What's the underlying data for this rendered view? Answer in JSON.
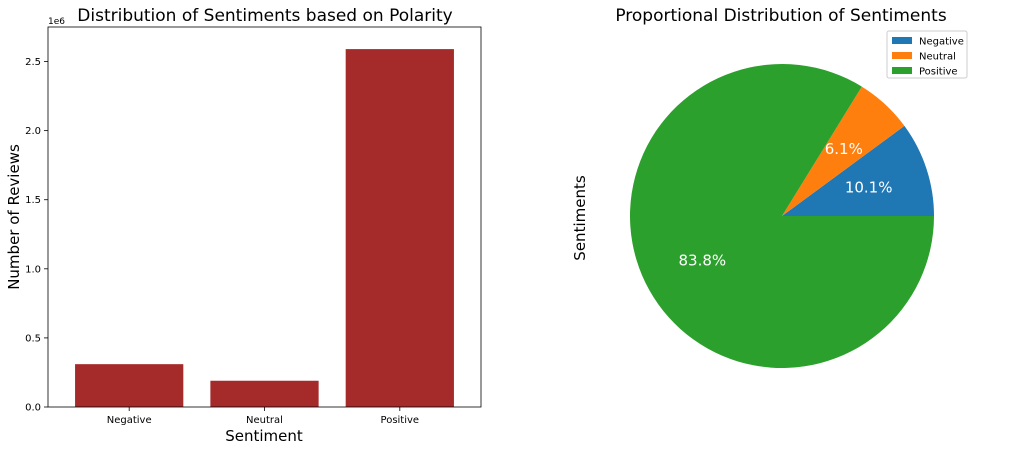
{
  "chart_data": [
    {
      "type": "bar",
      "title": "Distribution of Sentiments based on Polarity",
      "xlabel": "Sentiment",
      "ylabel": "Number of Reviews",
      "y_offset_label": "1e6",
      "categories": [
        "Negative",
        "Neutral",
        "Positive"
      ],
      "values": [
        310000,
        190000,
        2590000
      ],
      "ylim": [
        0,
        2750000
      ],
      "yticks": [
        0,
        500000,
        1000000,
        1500000,
        2000000,
        2500000
      ],
      "ytick_labels": [
        "0.0",
        "0.5",
        "1.0",
        "1.5",
        "2.0",
        "2.5"
      ],
      "bar_color": "#a52a2a",
      "grid": false
    },
    {
      "type": "pie",
      "title": "Proportional Distribution of Sentiments",
      "ylabel": "Sentiments",
      "labels": [
        "Negative",
        "Neutral",
        "Positive"
      ],
      "values": [
        10.1,
        6.1,
        83.8
      ],
      "pct_labels": [
        "10.1%",
        "6.1%",
        "83.8%"
      ],
      "colors": [
        "#1f77b4",
        "#ff7f0e",
        "#2ca02c"
      ],
      "pct_label_color": "#ffffff",
      "legend": {
        "placement": "top-right",
        "entries": [
          "Negative",
          "Neutral",
          "Positive"
        ]
      }
    }
  ]
}
